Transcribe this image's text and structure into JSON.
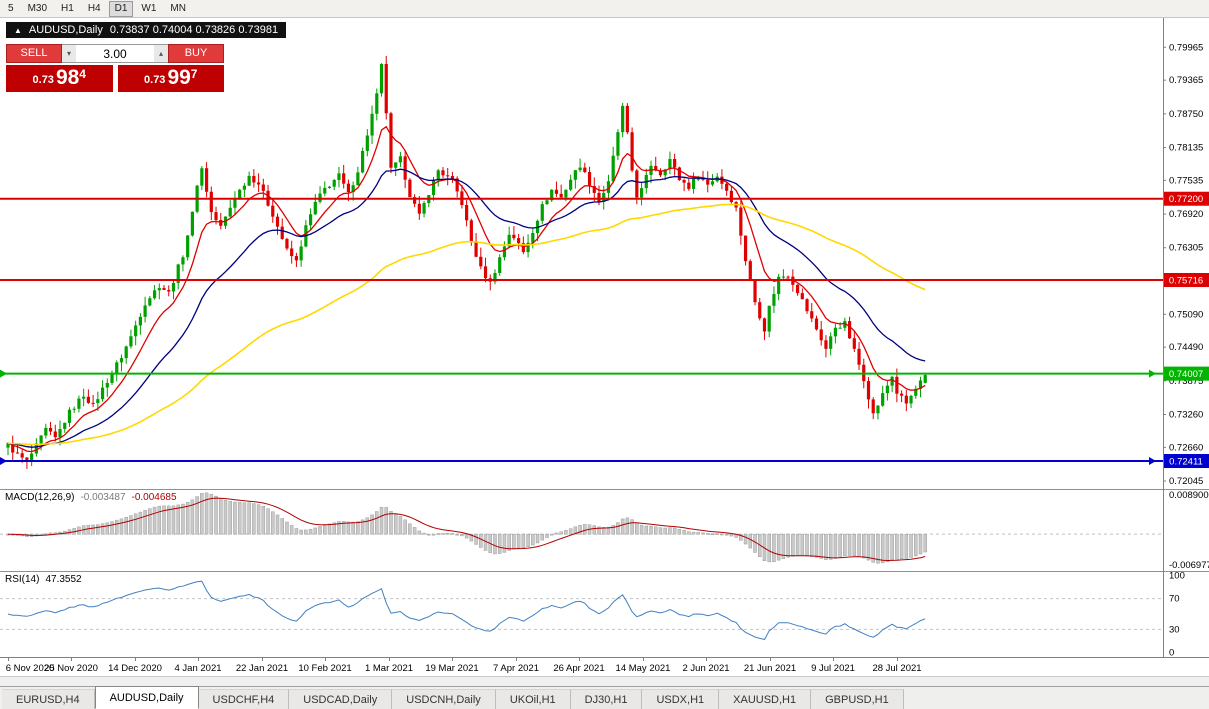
{
  "toolbar": {
    "timeframes": [
      "5",
      "M30",
      "H1",
      "H4",
      "D1",
      "W1",
      "MN"
    ],
    "active": "D1"
  },
  "chart_header": {
    "expand_icon": "▲",
    "symbol": "AUDUSD,Daily",
    "ohlc": "0.73837 0.74004 0.73826 0.73981"
  },
  "trade_panel": {
    "sell_label": "SELL",
    "buy_label": "BUY",
    "volume": "3.00",
    "sell_price": {
      "prefix": "0.73",
      "main": "98",
      "sup": "4"
    },
    "buy_price": {
      "prefix": "0.73",
      "main": "99",
      "sup": "7"
    }
  },
  "price_axis": {
    "ticks": [
      "0.79965",
      "0.79365",
      "0.78750",
      "0.78135",
      "0.77535",
      "0.76920",
      "0.76305",
      "0.75690",
      "0.75090",
      "0.74490",
      "0.73875",
      "0.73260",
      "0.72660",
      "0.72045"
    ]
  },
  "indicators": {
    "macd_label": {
      "name": "MACD(12,26,9)",
      "value1": "-0.003487",
      "value2": "-0.004685"
    },
    "rsi_label": {
      "name": "RSI(14)",
      "value": "47.3552"
    }
  },
  "tabs": {
    "items": [
      "EURUSD,H4",
      "AUDUSD,Daily",
      "USDCHF,H4",
      "USDCAD,Daily",
      "USDCNH,Daily",
      "UKOil,H1",
      "DJ30,H1",
      "USDX,H1",
      "XAUUSD,H1",
      "GBPUSD,H1"
    ],
    "active": "AUDUSD,Daily"
  },
  "chart_data": {
    "type": "candlestick",
    "symbol": "AUDUSD",
    "timeframe": "Daily",
    "title": "AUDUSD,Daily",
    "current_bar": {
      "open": 0.73837,
      "high": 0.74004,
      "low": 0.73826,
      "close": 0.73981
    },
    "n_candles": 195,
    "ylim": [
      0.719,
      0.805
    ],
    "up_color": "#00a000",
    "down_color": "#e00000",
    "price_path_anchors": [
      [
        0,
        0.727
      ],
      [
        2,
        0.7252
      ],
      [
        4,
        0.724
      ],
      [
        6,
        0.7268
      ],
      [
        8,
        0.7298
      ],
      [
        10,
        0.7282
      ],
      [
        13,
        0.733
      ],
      [
        16,
        0.7362
      ],
      [
        18,
        0.7342
      ],
      [
        21,
        0.7388
      ],
      [
        24,
        0.7432
      ],
      [
        26,
        0.7468
      ],
      [
        29,
        0.753
      ],
      [
        32,
        0.7562
      ],
      [
        34,
        0.7548
      ],
      [
        37,
        0.7618
      ],
      [
        39,
        0.7692
      ],
      [
        40,
        0.7748
      ],
      [
        41,
        0.7775
      ],
      [
        43,
        0.7695
      ],
      [
        45,
        0.7668
      ],
      [
        48,
        0.7722
      ],
      [
        51,
        0.7762
      ],
      [
        53,
        0.7748
      ],
      [
        56,
        0.7692
      ],
      [
        59,
        0.7625
      ],
      [
        61,
        0.7605
      ],
      [
        63,
        0.7668
      ],
      [
        65,
        0.7712
      ],
      [
        67,
        0.7738
      ],
      [
        70,
        0.7762
      ],
      [
        72,
        0.7728
      ],
      [
        74,
        0.7772
      ],
      [
        76,
        0.7838
      ],
      [
        78,
        0.7908
      ],
      [
        79,
        0.7962
      ],
      [
        80,
        0.7878
      ],
      [
        81,
        0.7772
      ],
      [
        83,
        0.7792
      ],
      [
        85,
        0.7728
      ],
      [
        87,
        0.7688
      ],
      [
        89,
        0.7732
      ],
      [
        91,
        0.7772
      ],
      [
        94,
        0.7752
      ],
      [
        96,
        0.7712
      ],
      [
        98,
        0.7642
      ],
      [
        100,
        0.7592
      ],
      [
        102,
        0.7566
      ],
      [
        104,
        0.7612
      ],
      [
        106,
        0.7656
      ],
      [
        107,
        0.765
      ],
      [
        109,
        0.7622
      ],
      [
        111,
        0.7662
      ],
      [
        113,
        0.7706
      ],
      [
        115,
        0.7736
      ],
      [
        117,
        0.7722
      ],
      [
        119,
        0.7756
      ],
      [
        121,
        0.7782
      ],
      [
        123,
        0.7748
      ],
      [
        125,
        0.7716
      ],
      [
        127,
        0.7748
      ],
      [
        129,
        0.7842
      ],
      [
        130,
        0.7886
      ],
      [
        131,
        0.7836
      ],
      [
        132,
        0.7772
      ],
      [
        133,
        0.7726
      ],
      [
        134,
        0.7736
      ],
      [
        136,
        0.7782
      ],
      [
        138,
        0.7766
      ],
      [
        140,
        0.7792
      ],
      [
        142,
        0.7756
      ],
      [
        144,
        0.7742
      ],
      [
        146,
        0.7762
      ],
      [
        148,
        0.7746
      ],
      [
        150,
        0.7762
      ],
      [
        152,
        0.7736
      ],
      [
        154,
        0.7702
      ],
      [
        156,
        0.7608
      ],
      [
        158,
        0.7532
      ],
      [
        160,
        0.7482
      ],
      [
        161,
        0.7522
      ],
      [
        163,
        0.7576
      ],
      [
        165,
        0.7582
      ],
      [
        167,
        0.7552
      ],
      [
        169,
        0.7516
      ],
      [
        171,
        0.7482
      ],
      [
        173,
        0.7446
      ],
      [
        175,
        0.7486
      ],
      [
        177,
        0.7492
      ],
      [
        179,
        0.7442
      ],
      [
        181,
        0.7392
      ],
      [
        183,
        0.7326
      ],
      [
        185,
        0.7362
      ],
      [
        187,
        0.7396
      ],
      [
        188,
        0.7366
      ],
      [
        190,
        0.7346
      ],
      [
        192,
        0.7372
      ],
      [
        194,
        0.73981
      ]
    ],
    "overlays": [
      {
        "name": "ma-fast",
        "type": "ema",
        "period": 9,
        "color": "#e00000"
      },
      {
        "name": "ma-medium",
        "type": "ema",
        "period": 26,
        "color": "#000080"
      },
      {
        "name": "ma-slow",
        "type": "ema",
        "period": 90,
        "color": "#ffd800"
      }
    ],
    "hlines": [
      {
        "price": 0.772,
        "label": "0.77200",
        "color": "#dd0000",
        "arrows": false
      },
      {
        "price": 0.75716,
        "label": "0.75716",
        "color": "#dd0000",
        "arrows": false
      },
      {
        "price": 0.74007,
        "label": "0.74007",
        "color": "#00b400",
        "arrows": true
      },
      {
        "price": 0.72411,
        "label": "0.72411",
        "color": "#0000d0",
        "arrows": true
      }
    ],
    "macd": {
      "fast": 12,
      "slow": 26,
      "signal": 9,
      "ylim": [
        -0.0084,
        0.0103
      ],
      "hist_color": "#c9c9c9",
      "signal_color": "#b00000",
      "axis_labels": [
        {
          "v": 0.0089,
          "label": "0.008900"
        },
        {
          "v": -0.006977,
          "label": "-0.006977"
        }
      ]
    },
    "rsi": {
      "period": 14,
      "color": "#4080c0",
      "levels": [
        70,
        30
      ],
      "axis_labels": [
        {
          "v": 100,
          "label": "100"
        },
        {
          "v": 70,
          "label": "70"
        },
        {
          "v": 30,
          "label": "30"
        },
        {
          "v": 0,
          "label": "0"
        }
      ]
    },
    "x_axis_dates": [
      "6 Nov 2020",
      "25 Nov 2020",
      "14 Dec 2020",
      "4 Jan 2021",
      "22 Jan 2021",
      "10 Feb 2021",
      "1 Mar 2021",
      "19 Mar 2021",
      "7 Apr 2021",
      "26 Apr 2021",
      "14 May 2021",
      "2 Jun 2021",
      "21 Jun 2021",
      "9 Jul 2021",
      "28 Jul 2021"
    ]
  }
}
